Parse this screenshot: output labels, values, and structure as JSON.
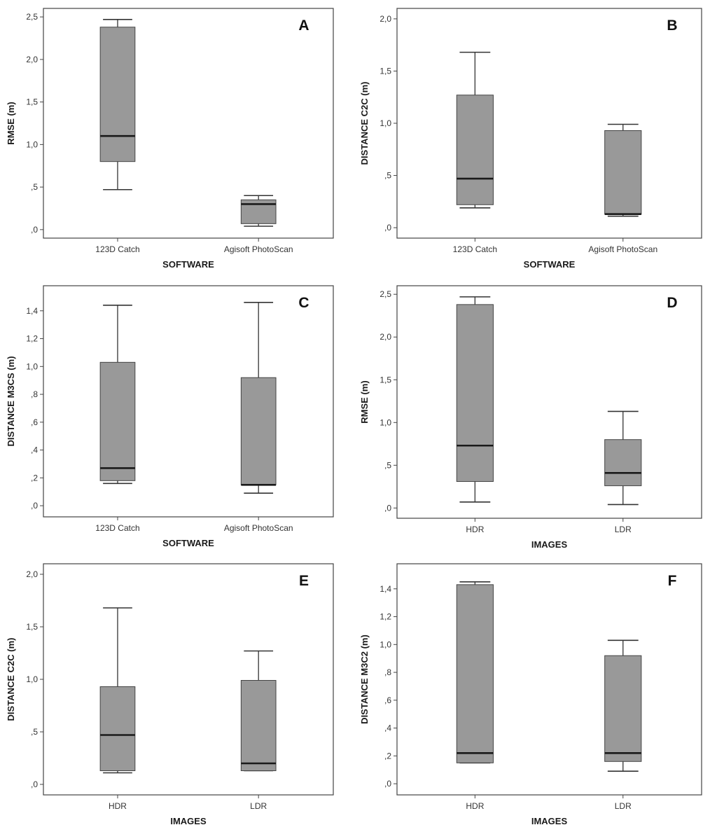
{
  "chart_data": [
    {
      "type": "box",
      "panel_label": "A",
      "xlabel": "SOFTWARE",
      "ylabel": "RMSE (m)",
      "ylim": [
        -0.1,
        2.6
      ],
      "yticks": [
        0,
        0.5,
        1.0,
        1.5,
        2.0,
        2.5
      ],
      "ytick_labels": [
        ",0",
        ",5",
        "1,0",
        "1,5",
        "2,0",
        "2,5"
      ],
      "categories": [
        "123D Catch",
        "Agisoft PhotoScan"
      ],
      "boxes": [
        {
          "min": 0.47,
          "q1": 0.8,
          "median": 1.1,
          "q3": 2.38,
          "max": 2.47
        },
        {
          "min": 0.04,
          "q1": 0.07,
          "median": 0.3,
          "q3": 0.35,
          "max": 0.4
        }
      ]
    },
    {
      "type": "box",
      "panel_label": "B",
      "xlabel": "SOFTWARE",
      "ylabel": "DISTANCE C2C (m)",
      "ylim": [
        -0.1,
        2.1
      ],
      "yticks": [
        0,
        0.5,
        1.0,
        1.5,
        2.0
      ],
      "ytick_labels": [
        ",0",
        ",5",
        "1,0",
        "1,5",
        "2,0"
      ],
      "categories": [
        "123D Catch",
        "Agisoft PhotoScan"
      ],
      "boxes": [
        {
          "min": 0.19,
          "q1": 0.22,
          "median": 0.47,
          "q3": 1.27,
          "max": 1.68
        },
        {
          "min": 0.11,
          "q1": 0.13,
          "median": 0.13,
          "q3": 0.93,
          "max": 0.99
        }
      ]
    },
    {
      "type": "box",
      "panel_label": "C",
      "xlabel": "SOFTWARE",
      "ylabel": "DISTANCE M3CS (m)",
      "ylim": [
        -0.08,
        1.58
      ],
      "yticks": [
        0,
        0.2,
        0.4,
        0.6,
        0.8,
        1.0,
        1.2,
        1.4
      ],
      "ytick_labels": [
        ",0",
        ",2",
        ",4",
        ",6",
        ",8",
        "1,0",
        "1,2",
        "1,4"
      ],
      "categories": [
        "123D Catch",
        "Agisoft PhotoScan"
      ],
      "boxes": [
        {
          "min": 0.16,
          "q1": 0.18,
          "median": 0.27,
          "q3": 1.03,
          "max": 1.44
        },
        {
          "min": 0.09,
          "q1": 0.15,
          "median": 0.15,
          "q3": 0.92,
          "max": 1.46
        }
      ]
    },
    {
      "type": "box",
      "panel_label": "D",
      "xlabel": "IMAGES",
      "ylabel": "RMSE (m)",
      "ylim": [
        -0.12,
        2.6
      ],
      "yticks": [
        0,
        0.5,
        1.0,
        1.5,
        2.0,
        2.5
      ],
      "ytick_labels": [
        ",0",
        ",5",
        "1,0",
        "1,5",
        "2,0",
        "2,5"
      ],
      "categories": [
        "HDR",
        "LDR"
      ],
      "boxes": [
        {
          "min": 0.07,
          "q1": 0.31,
          "median": 0.73,
          "q3": 2.38,
          "max": 2.47
        },
        {
          "min": 0.04,
          "q1": 0.26,
          "median": 0.41,
          "q3": 0.8,
          "max": 1.13
        }
      ]
    },
    {
      "type": "box",
      "panel_label": "E",
      "xlabel": "IMAGES",
      "ylabel": "DISTANCE C2C (m)",
      "ylim": [
        -0.1,
        2.1
      ],
      "yticks": [
        0,
        0.5,
        1.0,
        1.5,
        2.0
      ],
      "ytick_labels": [
        ",0",
        ",5",
        "1,0",
        "1,5",
        "2,0"
      ],
      "categories": [
        "HDR",
        "LDR"
      ],
      "boxes": [
        {
          "min": 0.11,
          "q1": 0.13,
          "median": 0.47,
          "q3": 0.93,
          "max": 1.68
        },
        {
          "min": 0.13,
          "q1": 0.13,
          "median": 0.2,
          "q3": 0.99,
          "max": 1.27
        }
      ]
    },
    {
      "type": "box",
      "panel_label": "F",
      "xlabel": "IMAGES",
      "ylabel": "DISTANCE M3C2 (m)",
      "ylim": [
        -0.08,
        1.58
      ],
      "yticks": [
        0,
        0.2,
        0.4,
        0.6,
        0.8,
        1.0,
        1.2,
        1.4
      ],
      "ytick_labels": [
        ",0",
        ",2",
        ",4",
        ",6",
        ",8",
        "1,0",
        "1,2",
        "1,4"
      ],
      "categories": [
        "HDR",
        "LDR"
      ],
      "boxes": [
        {
          "min": 0.15,
          "q1": 0.15,
          "median": 0.22,
          "q3": 1.43,
          "max": 1.45
        },
        {
          "min": 0.09,
          "q1": 0.16,
          "median": 0.22,
          "q3": 0.92,
          "max": 1.03
        }
      ]
    }
  ]
}
